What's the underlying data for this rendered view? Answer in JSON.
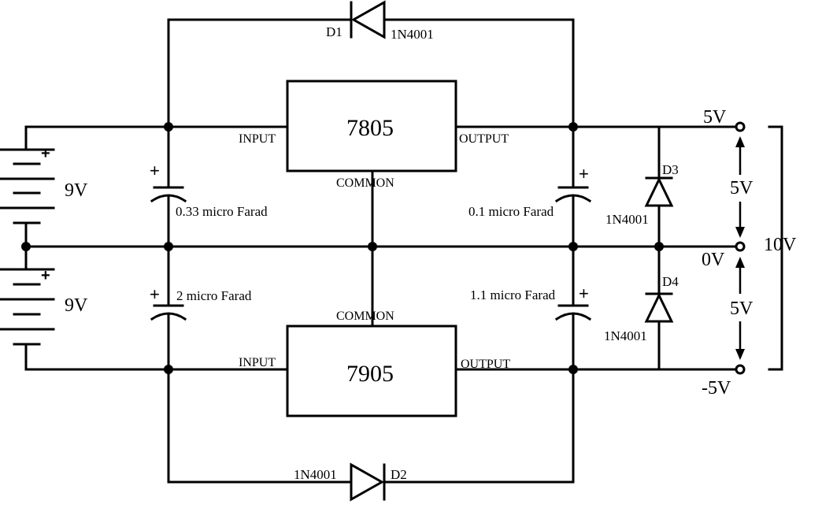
{
  "regulators": {
    "top": {
      "name": "7805",
      "input": "INPUT",
      "output": "OUTPUT",
      "common": "COMMON"
    },
    "bottom": {
      "name": "7905",
      "input": "INPUT",
      "output": "OUTPUT",
      "common": "COMMON"
    }
  },
  "batteries": [
    {
      "voltage": "9V",
      "polarity": "+"
    },
    {
      "voltage": "9V",
      "polarity": "+"
    }
  ],
  "capacitors": [
    {
      "value": "0.33 micro Farad",
      "polarity": "+"
    },
    {
      "value": "0.1 micro Farad",
      "polarity": "+"
    },
    {
      "value": "2 micro Farad",
      "polarity": "+"
    },
    {
      "value": "1.1 micro Farad",
      "polarity": "+"
    }
  ],
  "diodes": [
    {
      "ref": "D1",
      "part": "1N4001"
    },
    {
      "ref": "D2",
      "part": "1N4001"
    },
    {
      "ref": "D3",
      "part": "1N4001"
    },
    {
      "ref": "D4",
      "part": "1N4001"
    }
  ],
  "outputs": {
    "positive": "5V",
    "ground": "0V",
    "negative": "-5V",
    "upper_span": "5V",
    "lower_span": "5V",
    "total_span": "10V"
  }
}
